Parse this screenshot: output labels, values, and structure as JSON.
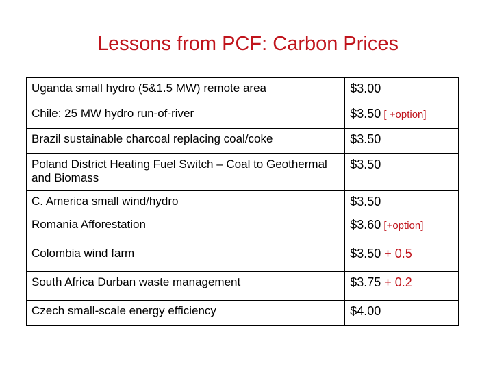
{
  "title": "Lessons from PCF: Carbon Prices",
  "rows": [
    {
      "project": "Uganda small hydro (5&1.5 MW) remote area",
      "price": "$3.00",
      "extra": ""
    },
    {
      "project": "Chile: 25 MW hydro run-of-river",
      "price": "$3.50",
      "extra": " [ +option]"
    },
    {
      "project": "Brazil sustainable charcoal replacing coal/coke",
      "price": "$3.50",
      "extra": ""
    },
    {
      "project": "Poland District Heating Fuel Switch – Coal to Geothermal and Biomass",
      "price": "$3.50",
      "extra": ""
    },
    {
      "project": "C. America small wind/hydro",
      "price": "$3.50",
      "extra": ""
    },
    {
      "project": "Romania  Afforestation",
      "price": "$3.60",
      "extra": " [+option]"
    },
    {
      "project": "Colombia wind farm",
      "price": "$3.50",
      "extra": " + 0.5"
    },
    {
      "project": "South Africa Durban waste management",
      "price": "$3.75",
      "extra": " + 0.2"
    },
    {
      "project": "Czech small-scale energy efficiency",
      "price": "$4.00",
      "extra": ""
    }
  ],
  "colors": {
    "title": "#c0141c",
    "accent": "#c0141c",
    "text": "#000000"
  }
}
